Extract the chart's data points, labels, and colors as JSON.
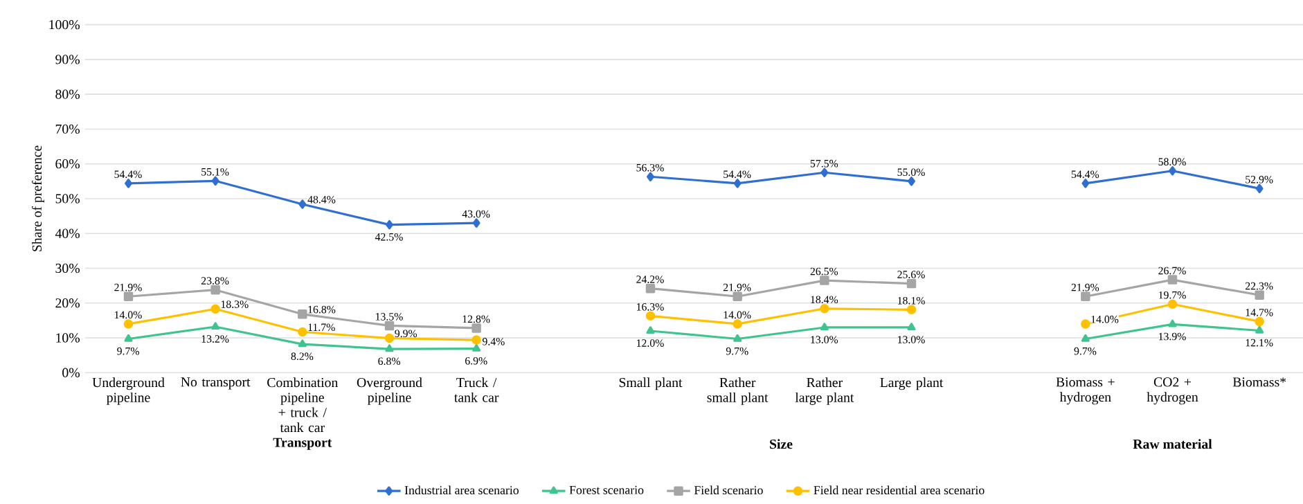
{
  "chart_data": {
    "type": "line",
    "ylabel": "Share of preference",
    "categories": [
      "Underground pipeline",
      "No transport",
      "Combination pipeline + truck / tank car",
      "Overground pipeline",
      "Truck / tank car",
      null,
      "Small plant",
      "Rather small plant",
      "Rather large plant",
      "Large plant",
      null,
      "Biomass + hydrogen",
      "CO2 + hydrogen",
      "Biomass*"
    ],
    "annotations": [
      "Transport",
      "Size",
      "Raw material"
    ],
    "ylim": [
      0,
      100
    ],
    "yticks": [
      {
        "value": 0,
        "label": "0%"
      },
      {
        "value": 10,
        "label": "10%"
      },
      {
        "value": 20,
        "label": "20%"
      },
      {
        "value": 30,
        "label": "30%"
      },
      {
        "value": 40,
        "label": "40%"
      },
      {
        "value": 50,
        "label": "50%"
      },
      {
        "value": 60,
        "label": "60%"
      },
      {
        "value": 70,
        "label": "70%"
      },
      {
        "value": 80,
        "label": "80%"
      },
      {
        "value": 90,
        "label": "90%"
      },
      {
        "value": 100,
        "label": "100%"
      }
    ],
    "grid": "y",
    "legend": "bottom",
    "series": [
      {
        "name": "Industrial area scenario",
        "color": "#2f6fd1",
        "marker": "diamond",
        "values": [
          54.4,
          55.1,
          48.4,
          42.5,
          43.0,
          null,
          56.3,
          54.4,
          57.5,
          55.0,
          null,
          54.4,
          58.0,
          52.9
        ],
        "value_labels": [
          "54.4%",
          "55.1%",
          "48.4%",
          "42.5%",
          "43.0%",
          null,
          "56.3%",
          "54.4%",
          "57.5%",
          "55.0%",
          null,
          "54.4%",
          "58.0%",
          "52.9%"
        ]
      },
      {
        "name": "Forest scenario",
        "color": "#3fc48f",
        "marker": "triangle",
        "values": [
          9.7,
          13.2,
          8.2,
          6.8,
          6.9,
          null,
          12.0,
          9.7,
          13.0,
          13.0,
          null,
          9.7,
          13.9,
          12.1
        ],
        "value_labels": [
          "9.7%",
          "13.2%",
          "8.2%",
          "6.8%",
          "6.9%",
          null,
          "12.0%",
          "9.7%",
          "13.0%",
          "13.0%",
          null,
          "9.7%",
          "13.9%",
          "12.1%"
        ]
      },
      {
        "name": "Field scenario",
        "color": "#a5a5a5",
        "marker": "square",
        "values": [
          21.9,
          23.8,
          16.8,
          13.5,
          12.8,
          null,
          24.2,
          21.9,
          26.5,
          25.6,
          null,
          21.9,
          26.7,
          22.3
        ],
        "value_labels": [
          "21.9%",
          "23.8%",
          "16.8%",
          "13.5%",
          "12.8%",
          null,
          "24.2%",
          "21.9%",
          "26.5%",
          "25.6%",
          null,
          "21.9%",
          "26.7%",
          "22.3%"
        ]
      },
      {
        "name": "Field near residential area scenario",
        "color": "#ffc000",
        "marker": "circle",
        "values": [
          14.0,
          18.3,
          11.7,
          9.9,
          9.4,
          null,
          16.3,
          14.0,
          18.4,
          18.1,
          null,
          14.0,
          19.7,
          14.7
        ],
        "value_labels": [
          "14.0%",
          "18.3%",
          "11.7%",
          "9.9%",
          "9.4%",
          null,
          "16.3%",
          "14.0%",
          "18.4%",
          "18.1%",
          null,
          "14.0%",
          "19.7%",
          "14.7%"
        ]
      }
    ]
  }
}
